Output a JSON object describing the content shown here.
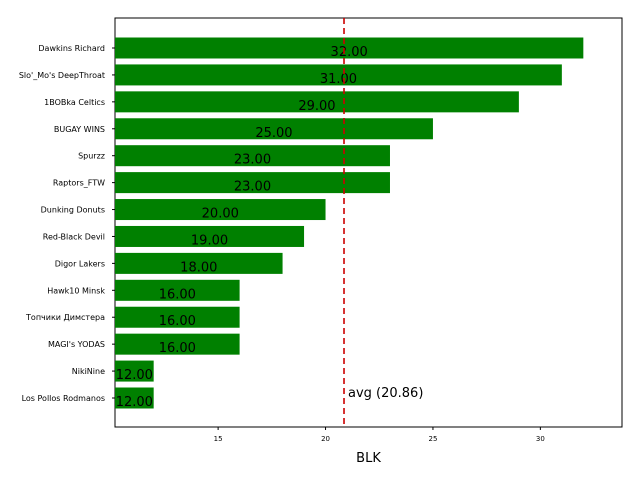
{
  "chart_data": {
    "type": "bar",
    "orientation": "horizontal",
    "categories": [
      "Dawkins Richard",
      "Slo'_Mo's DeepThroat",
      "1BOBka Celtics",
      "BUGAY WINS",
      "Spurzz",
      "Raptors_FTW",
      "Dunking Donuts",
      "Red-Black Devil",
      "Digor Lakers",
      "Hawk10 Minsk",
      "Топчики Димстера",
      "MAGI's YODAS",
      "NikiNine",
      "Los Pollos Rodmanos"
    ],
    "values": [
      32,
      31,
      29,
      25,
      23,
      23,
      20,
      19,
      18,
      16,
      16,
      16,
      12,
      12
    ],
    "value_labels": [
      "32.00",
      "31.00",
      "29.00",
      "25.00",
      "23.00",
      "23.00",
      "20.00",
      "19.00",
      "18.00",
      "16.00",
      "16.00",
      "16.00",
      "12.00",
      "12.00"
    ],
    "xlabel": "BLK",
    "xlim": [
      10.2,
      33.8
    ],
    "xticks": [
      15,
      20,
      25,
      30
    ],
    "xtick_labels": [
      "15",
      "20",
      "25",
      "30"
    ],
    "bar_color": "#008000",
    "average": {
      "value": 20.86,
      "label": "avg (20.86)",
      "color": "#cc0000",
      "style": "dashed"
    },
    "grid": false,
    "legend": "none"
  }
}
